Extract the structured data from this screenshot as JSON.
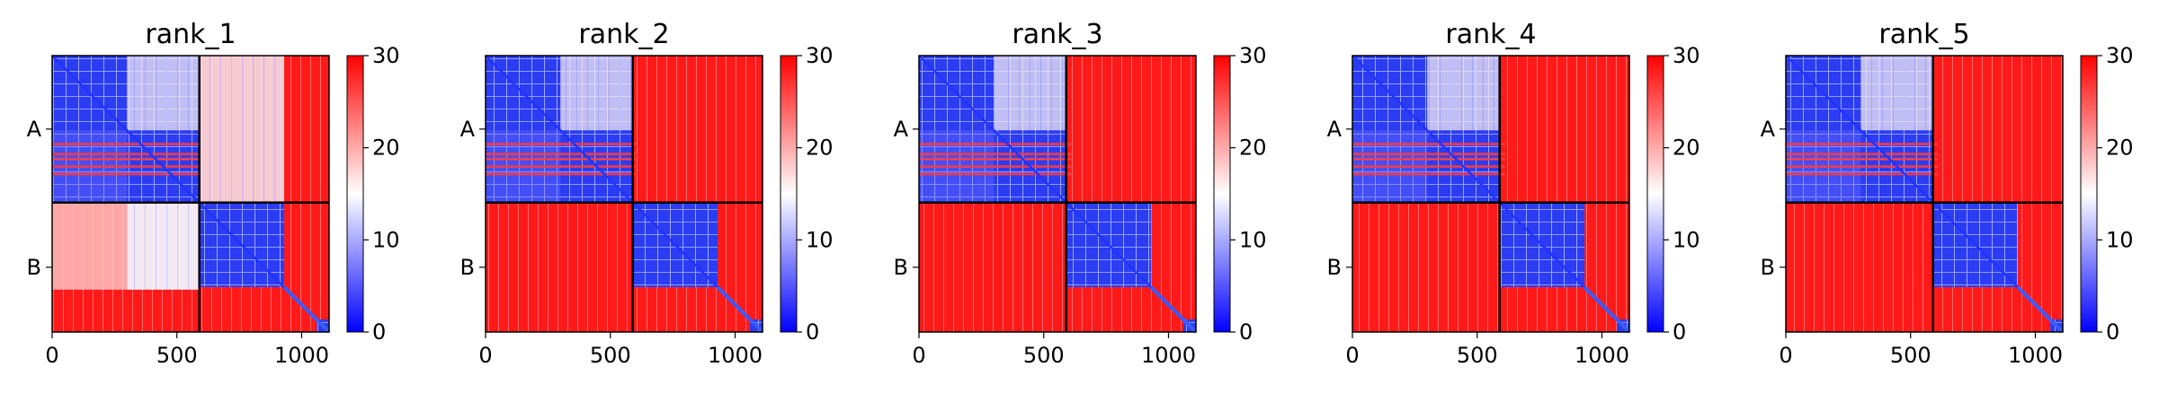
{
  "colors": {
    "low": "#0000ff",
    "mid": "#ffffff",
    "high": "#ff0000",
    "frame": "#000000",
    "divider": "#000000"
  },
  "chart_data": [
    {
      "type": "heatmap",
      "title": "rank_1",
      "xlabel": "",
      "ylabel": "",
      "x_ticks": [
        "0",
        "500",
        "1000"
      ],
      "x_tick_values": [
        0,
        500,
        1000
      ],
      "xlim": [
        0,
        1110
      ],
      "y_tick_labels": [
        "A",
        "B"
      ],
      "chain_split": 590,
      "size": 1110,
      "colorbar": {
        "ticks": [
          "0",
          "10",
          "20",
          "30"
        ],
        "tick_values": [
          0,
          10,
          20,
          30
        ],
        "range": [
          0,
          30
        ],
        "cmap": "bwr"
      },
      "blocks": {
        "AA": "low",
        "AB": "high_with_low_cluster",
        "BA": "mixed",
        "BB": "low_cluster",
        "far": "high"
      }
    },
    {
      "type": "heatmap",
      "title": "rank_2",
      "xlabel": "",
      "ylabel": "",
      "x_ticks": [
        "0",
        "500",
        "1000"
      ],
      "x_tick_values": [
        0,
        500,
        1000
      ],
      "xlim": [
        0,
        1110
      ],
      "y_tick_labels": [
        "A",
        "B"
      ],
      "chain_split": 590,
      "size": 1110,
      "colorbar": {
        "ticks": [
          "0",
          "10",
          "20",
          "30"
        ],
        "tick_values": [
          0,
          10,
          20,
          30
        ],
        "range": [
          0,
          30
        ],
        "cmap": "bwr"
      },
      "blocks": {
        "AA": "low",
        "AB": "high",
        "BA": "high",
        "BB": "low_cluster",
        "far": "high"
      }
    },
    {
      "type": "heatmap",
      "title": "rank_3",
      "xlabel": "",
      "ylabel": "",
      "x_ticks": [
        "0",
        "500",
        "1000"
      ],
      "x_tick_values": [
        0,
        500,
        1000
      ],
      "xlim": [
        0,
        1110
      ],
      "y_tick_labels": [
        "A",
        "B"
      ],
      "chain_split": 590,
      "size": 1110,
      "colorbar": {
        "ticks": [
          "0",
          "10",
          "20",
          "30"
        ],
        "tick_values": [
          0,
          10,
          20,
          30
        ],
        "range": [
          0,
          30
        ],
        "cmap": "bwr"
      },
      "blocks": {
        "AA": "low",
        "AB": "high",
        "BA": "high",
        "BB": "low_cluster",
        "far": "high"
      }
    },
    {
      "type": "heatmap",
      "title": "rank_4",
      "xlabel": "",
      "ylabel": "",
      "x_ticks": [
        "0",
        "500",
        "1000"
      ],
      "x_tick_values": [
        0,
        500,
        1000
      ],
      "xlim": [
        0,
        1110
      ],
      "y_tick_labels": [
        "A",
        "B"
      ],
      "chain_split": 590,
      "size": 1110,
      "colorbar": {
        "ticks": [
          "0",
          "10",
          "20",
          "30"
        ],
        "tick_values": [
          0,
          10,
          20,
          30
        ],
        "range": [
          0,
          30
        ],
        "cmap": "bwr"
      },
      "blocks": {
        "AA": "low",
        "AB": "high",
        "BA": "high",
        "BB": "low_cluster",
        "far": "high"
      }
    },
    {
      "type": "heatmap",
      "title": "rank_5",
      "xlabel": "",
      "ylabel": "",
      "x_ticks": [
        "0",
        "500",
        "1000"
      ],
      "x_tick_values": [
        0,
        500,
        1000
      ],
      "xlim": [
        0,
        1110
      ],
      "y_tick_labels": [
        "A",
        "B"
      ],
      "chain_split": 590,
      "size": 1110,
      "colorbar": {
        "ticks": [
          "0",
          "10",
          "20",
          "30"
        ],
        "tick_values": [
          0,
          10,
          20,
          30
        ],
        "range": [
          0,
          30
        ],
        "cmap": "bwr"
      },
      "blocks": {
        "AA": "low",
        "AB": "high",
        "BA": "high",
        "BB": "low_cluster",
        "far": "high"
      }
    }
  ]
}
